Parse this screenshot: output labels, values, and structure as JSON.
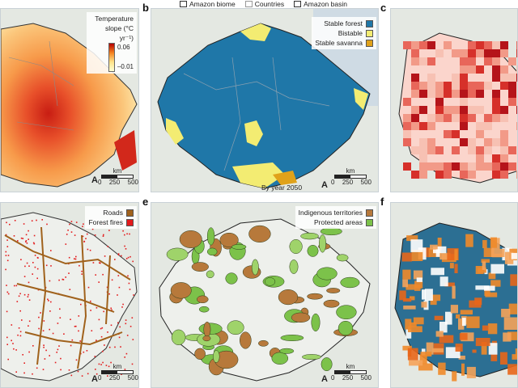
{
  "top_legend": {
    "items": [
      {
        "label": "Amazon biome"
      },
      {
        "label": "Countries"
      },
      {
        "label": "Amazon basin"
      }
    ]
  },
  "panels": {
    "a": {
      "label": "",
      "legend_title": "Temperature slope (°C yr⁻¹)",
      "ticks": [
        "0.06",
        "–0.01"
      ]
    },
    "b": {
      "label": "b",
      "legend": [
        "Stable forest",
        "Bistable",
        "Stable savanna"
      ],
      "caption": "By year 2050"
    },
    "c": {
      "label": "c"
    },
    "d": {
      "label": "",
      "legend": [
        "Roads",
        "Forest fires"
      ]
    },
    "e": {
      "label": "e",
      "legend": [
        "Indigenous territories",
        "Protected areas"
      ]
    },
    "f": {
      "label": "f"
    }
  },
  "scalebar": {
    "unit": "km",
    "ticks": [
      "0",
      "250",
      "500"
    ]
  },
  "north_symbol": "A",
  "colors": {
    "stable_forest": "#1f77a8",
    "bistable": "#f3ec72",
    "stable_savanna": "#e0a21a",
    "roads": "#a0621c",
    "fires": "#e31a1c",
    "indigenous": "#b7793b",
    "protected": "#7cc24a",
    "land": "#e8ebe4",
    "ocean": "#c9d9e4"
  }
}
